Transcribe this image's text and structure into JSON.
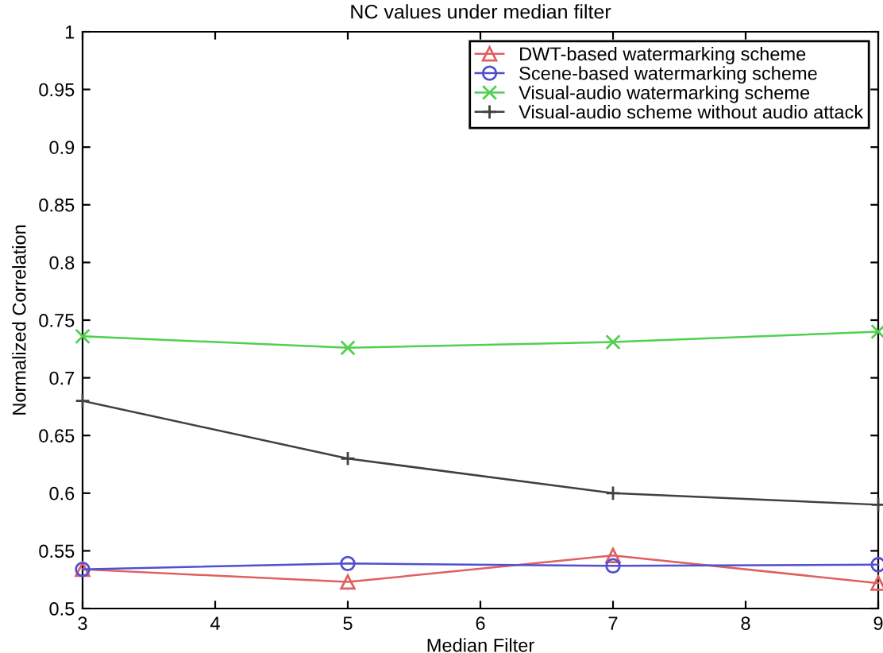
{
  "chart_data": {
    "type": "line",
    "title": "NC values under median filter",
    "xlabel": "Median Filter",
    "ylabel": "Normalized Correlation",
    "x": [
      3,
      5,
      7,
      9
    ],
    "series": [
      {
        "name": "DWT-based watermarking scheme",
        "color": "#e06060",
        "marker": "triangle",
        "values": [
          0.534,
          0.523,
          0.546,
          0.522
        ]
      },
      {
        "name": "Scene-based watermarking scheme",
        "color": "#5050d0",
        "marker": "circle",
        "values": [
          0.534,
          0.539,
          0.537,
          0.538
        ]
      },
      {
        "name": "Visual-audio watermarking scheme",
        "color": "#50d050",
        "marker": "cross",
        "values": [
          0.736,
          0.726,
          0.731,
          0.74
        ]
      },
      {
        "name": "Visual-audio scheme without audio attack",
        "color": "#404040",
        "marker": "plus",
        "values": [
          0.68,
          0.63,
          0.6,
          0.59
        ]
      }
    ],
    "xlim": [
      3,
      9
    ],
    "xticks": [
      3,
      4,
      5,
      6,
      7,
      8,
      9
    ],
    "ylim": [
      0.5,
      1
    ],
    "yticks": [
      0.5,
      0.55,
      0.6,
      0.65,
      0.7,
      0.75,
      0.8,
      0.85,
      0.9,
      0.95,
      1
    ],
    "grid": false,
    "legend": "top right",
    "line_style": "solid"
  }
}
